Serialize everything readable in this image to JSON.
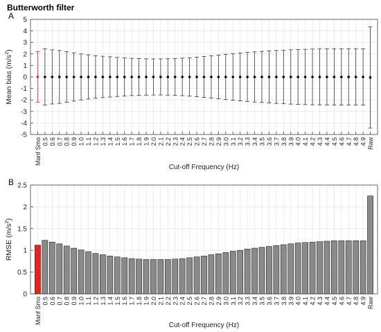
{
  "figure_title": "Butterworth filter",
  "panel_labels": [
    "A",
    "B"
  ],
  "chart_data": [
    {
      "type": "scatter",
      "panel": "A",
      "xlabel": "Cut-off Frequency (Hz)",
      "ylabel_main": "Mean bias (m/s",
      "ylabel_sup": "2",
      "ylabel_end": ")",
      "ylim": [
        -5,
        5
      ],
      "yticks": [
        -5,
        -4,
        -3,
        -2,
        -1,
        0,
        1,
        2,
        3,
        4,
        5
      ],
      "grid": true,
      "categories": [
        "Manf Smo",
        "0.5",
        "0.6",
        "0.7",
        "0.8",
        "0.9",
        "1.0",
        "1.1",
        "1.2",
        "1.3",
        "1.4",
        "1.5",
        "1.6",
        "1.7",
        "1.8",
        "1.9",
        "2.0",
        "2.1",
        "2.2",
        "2.3",
        "2.4",
        "2.5",
        "2.6",
        "2.7",
        "2.8",
        "2.9",
        "3.0",
        "3.1",
        "3.2",
        "3.3",
        "3.4",
        "3.5",
        "3.6",
        "3.7",
        "3.8",
        "3.9",
        "4.0",
        "4.1",
        "4.2",
        "4.3",
        "4.4",
        "4.5",
        "4.6",
        "4.7",
        "4.8",
        "4.9",
        "Raw"
      ],
      "mean": [
        0,
        0,
        0,
        0,
        0,
        0,
        0,
        0,
        0,
        0,
        0,
        0,
        0,
        0,
        0,
        0,
        0,
        0,
        0,
        0,
        0,
        0,
        0,
        0,
        0,
        0,
        0,
        0,
        0,
        0,
        0,
        0,
        0,
        0,
        0,
        0,
        0,
        0,
        0,
        0,
        0,
        0,
        0,
        0,
        0,
        0,
        -0.05
      ],
      "error": [
        2.2,
        2.45,
        2.35,
        2.3,
        2.2,
        2.1,
        2.0,
        1.92,
        1.85,
        1.8,
        1.75,
        1.7,
        1.65,
        1.62,
        1.6,
        1.58,
        1.57,
        1.57,
        1.58,
        1.6,
        1.63,
        1.67,
        1.72,
        1.78,
        1.84,
        1.9,
        1.97,
        2.03,
        2.08,
        2.13,
        2.18,
        2.22,
        2.26,
        2.3,
        2.33,
        2.36,
        2.38,
        2.4,
        2.42,
        2.43,
        2.44,
        2.45,
        2.45,
        2.45,
        2.45,
        2.45,
        4.4
      ],
      "highlight_color": "#e8221c",
      "default_color": "#333333"
    },
    {
      "type": "bar",
      "panel": "B",
      "xlabel": "Cut-off Frequency (Hz)",
      "ylabel_main": "RMSE (m/s",
      "ylabel_sup": "2",
      "ylabel_end": ")",
      "ylim": [
        0,
        2.5
      ],
      "yticks": [
        0,
        0.5,
        1,
        1.5,
        2,
        2.5
      ],
      "grid": true,
      "categories": [
        "Manf Smo",
        "0.5",
        "0.6",
        "0.7",
        "0.8",
        "0.9",
        "1.0",
        "1.1",
        "1.2",
        "1.3",
        "1.4",
        "1.5",
        "1.6",
        "1.7",
        "1.8",
        "1.9",
        "2.0",
        "2.1",
        "2.2",
        "2.3",
        "2.4",
        "2.5",
        "2.6",
        "2.7",
        "2.8",
        "2.9",
        "3.0",
        "3.1",
        "3.2",
        "3.3",
        "3.4",
        "3.5",
        "3.6",
        "3.7",
        "3.8",
        "3.9",
        "4.0",
        "4.1",
        "4.2",
        "4.3",
        "4.4",
        "4.5",
        "4.6",
        "4.7",
        "4.8",
        "4.9",
        "Raw"
      ],
      "values": [
        1.12,
        1.23,
        1.19,
        1.15,
        1.1,
        1.05,
        1.01,
        0.97,
        0.93,
        0.9,
        0.87,
        0.85,
        0.83,
        0.81,
        0.8,
        0.79,
        0.79,
        0.79,
        0.79,
        0.8,
        0.81,
        0.83,
        0.85,
        0.87,
        0.9,
        0.92,
        0.95,
        0.98,
        1.0,
        1.03,
        1.05,
        1.07,
        1.09,
        1.11,
        1.13,
        1.15,
        1.17,
        1.18,
        1.19,
        1.2,
        1.21,
        1.22,
        1.22,
        1.22,
        1.22,
        1.22,
        2.25
      ],
      "highlight_color": "#e8221c",
      "bar_color": "#8a8a8a"
    }
  ]
}
